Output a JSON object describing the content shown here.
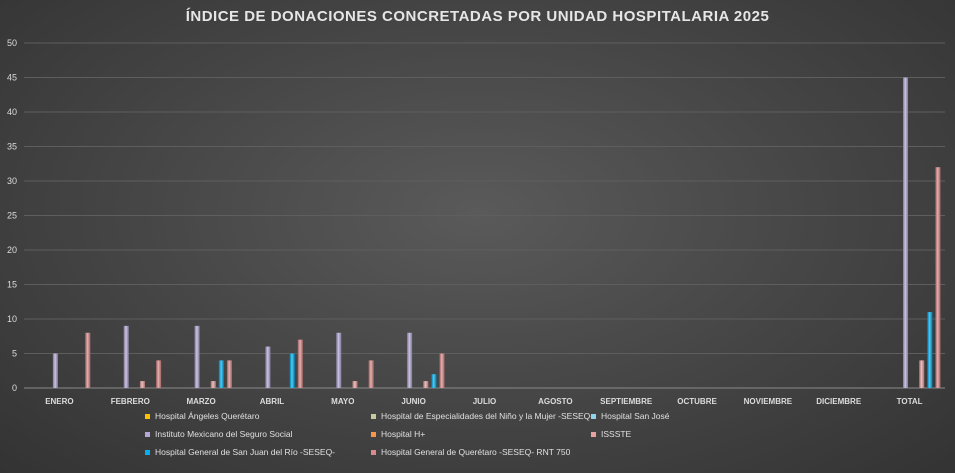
{
  "chart_data": {
    "type": "bar",
    "title": "ÍNDICE DE DONACIONES CONCRETADAS POR UNIDAD HOSPITALARIA 2025",
    "xlabel": "",
    "ylabel": "",
    "ylim": [
      0,
      50
    ],
    "yticks": [
      0,
      5,
      10,
      15,
      20,
      25,
      30,
      35,
      40,
      45,
      50
    ],
    "grid": true,
    "legend_position": "bottom",
    "categories": [
      "ENERO",
      "FEBRERO",
      "MARZO",
      "ABRIL",
      "MAYO",
      "JUNIO",
      "JULIO",
      "AGOSTO",
      "SEPTIEMBRE",
      "OCTUBRE",
      "NOVIEMBRE",
      "DICIEMBRE",
      "TOTAL"
    ],
    "series": [
      {
        "name": "Hospital Ángeles Querétaro",
        "color": "#ffc000",
        "values": [
          0,
          0,
          0,
          0,
          0,
          0,
          0,
          0,
          0,
          0,
          0,
          0,
          0
        ]
      },
      {
        "name": "Hospital de Especialidades del Niño y la Mujer -SESEQ-",
        "color": "#c9c9a0",
        "values": [
          0,
          0,
          0,
          0,
          0,
          0,
          0,
          0,
          0,
          0,
          0,
          0,
          0
        ]
      },
      {
        "name": "Hospital San José",
        "color": "#8fd3ea",
        "values": [
          0,
          0,
          0,
          0,
          0,
          0,
          0,
          0,
          0,
          0,
          0,
          0,
          0
        ]
      },
      {
        "name": "Instituto Mexicano del Seguro Social",
        "color": "#b4a7d6",
        "values": [
          5,
          9,
          9,
          6,
          8,
          8,
          0,
          0,
          0,
          0,
          0,
          0,
          45
        ]
      },
      {
        "name": "Hospital H+",
        "color": "#f79646",
        "values": [
          0,
          0,
          0,
          0,
          0,
          0,
          0,
          0,
          0,
          0,
          0,
          0,
          0
        ]
      },
      {
        "name": "ISSSTE",
        "color": "#e6a0a0",
        "values": [
          0,
          1,
          1,
          0,
          1,
          1,
          0,
          0,
          0,
          0,
          0,
          0,
          4
        ]
      },
      {
        "name": "Hospital General de San Juan del Río -SESEQ-",
        "color": "#00b0f0",
        "values": [
          0,
          0,
          4,
          5,
          0,
          2,
          0,
          0,
          0,
          0,
          0,
          0,
          11
        ]
      },
      {
        "name": "Hospital General de Querétaro -SESEQ- RNT 750",
        "color": "#da8a8a",
        "values": [
          8,
          4,
          4,
          7,
          4,
          5,
          0,
          0,
          0,
          0,
          0,
          0,
          32
        ]
      }
    ]
  }
}
